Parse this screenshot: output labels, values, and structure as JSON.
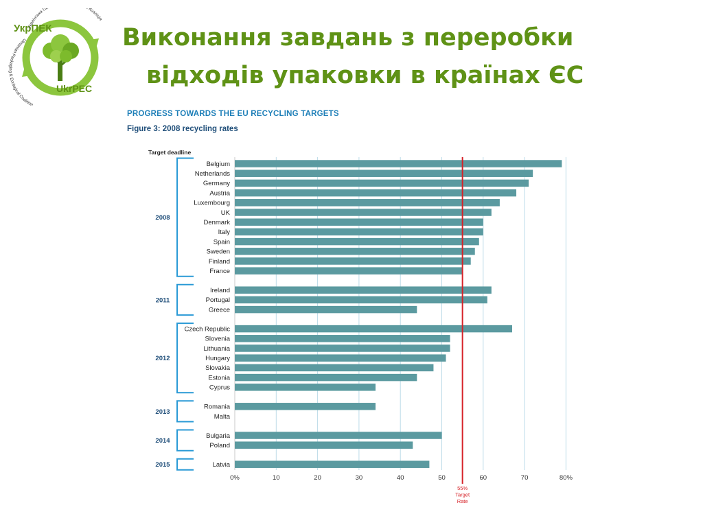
{
  "slide": {
    "title_line1": "Виконання завдань з переробки",
    "title_line2": "відходів упаковки в країнах ЄС"
  },
  "logo": {
    "name_top": "УкрПЕК",
    "name_bottom": "UkrPEC",
    "ring_text_ua": "Українська Пакувально-Екологічна Коаліція",
    "ring_text_en": "Ukrainian Packaging & Ecological Coalition"
  },
  "figure": {
    "header": "PROGRESS TOWARDS THE EU RECYCLING TARGETS",
    "subtitle": "Figure 3: 2008 recycling rates"
  },
  "colors": {
    "title_green": "#5f9216",
    "bar": "#5b9aa0",
    "target_line": "#d62228",
    "grid": "#bcdbe8",
    "bracket": "#2a9ad6",
    "header_blue": "#1e7fb8",
    "year_blue": "#1f4e79"
  },
  "chart_data": {
    "type": "bar",
    "orientation": "horizontal",
    "group_header": "Target deadline",
    "groups": [
      {
        "label": "2008",
        "rows": [
          {
            "country": "Belgium",
            "value": 79
          },
          {
            "country": "Netherlands",
            "value": 72
          },
          {
            "country": "Germany",
            "value": 71
          },
          {
            "country": "Austria",
            "value": 68
          },
          {
            "country": "Luxembourg",
            "value": 64
          },
          {
            "country": "UK",
            "value": 62
          },
          {
            "country": "Denmark",
            "value": 60
          },
          {
            "country": "Italy",
            "value": 60
          },
          {
            "country": "Spain",
            "value": 59
          },
          {
            "country": "Sweden",
            "value": 58
          },
          {
            "country": "Finland",
            "value": 57
          },
          {
            "country": "France",
            "value": 55
          }
        ]
      },
      {
        "label": "2011",
        "rows": [
          {
            "country": "Ireland",
            "value": 62
          },
          {
            "country": "Portugal",
            "value": 61
          },
          {
            "country": "Greece",
            "value": 44
          }
        ]
      },
      {
        "label": "2012",
        "rows": [
          {
            "country": "Czech Republic",
            "value": 67
          },
          {
            "country": "Slovenia",
            "value": 52
          },
          {
            "country": "Lithuania",
            "value": 52
          },
          {
            "country": "Hungary",
            "value": 51
          },
          {
            "country": "Slovakia",
            "value": 48
          },
          {
            "country": "Estonia",
            "value": 44
          },
          {
            "country": "Cyprus",
            "value": 34
          }
        ]
      },
      {
        "label": "2013",
        "rows": [
          {
            "country": "Romania",
            "value": 34
          },
          {
            "country": "Malta",
            "value": 0
          }
        ]
      },
      {
        "label": "2014",
        "rows": [
          {
            "country": "Bulgaria",
            "value": 50
          },
          {
            "country": "Poland",
            "value": 43
          }
        ]
      },
      {
        "label": "2015",
        "rows": [
          {
            "country": "Latvia",
            "value": 47
          }
        ]
      }
    ],
    "x_ticks": [
      "0%",
      "10",
      "20",
      "30",
      "40",
      "50",
      "60",
      "70",
      "80%"
    ],
    "xlim": [
      0,
      80
    ],
    "grid": true,
    "target": {
      "value": 55,
      "label_lines": [
        "55%",
        "Target",
        "Rate"
      ]
    }
  }
}
